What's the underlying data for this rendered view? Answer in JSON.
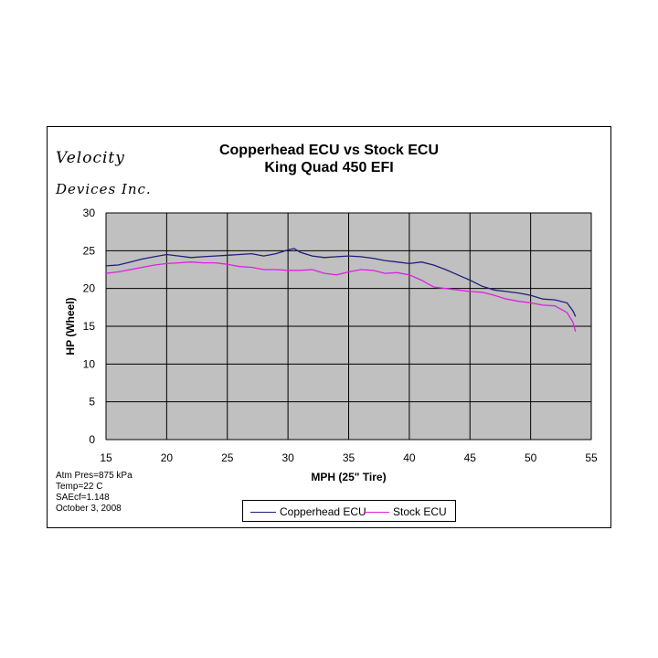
{
  "logo": {
    "line1": "Velocity",
    "line2": "Devices Inc."
  },
  "notes": [
    "Atm Pres=875 kPa",
    "Temp=22 C",
    "SAEcf=1.148",
    "October 3, 2008"
  ],
  "colors": {
    "copperhead": "#1f1f7a",
    "stock": "#e020e0",
    "plot_bg": "#c0c0c0",
    "grid": "#000000"
  },
  "chart_data": {
    "type": "line",
    "title": "Copperhead ECU vs Stock ECU",
    "subtitle": "King Quad 450 EFI",
    "xlabel": "MPH (25\"  Tire)",
    "ylabel": "HP (Wheel)",
    "xlim": [
      15,
      55
    ],
    "ylim": [
      0,
      30
    ],
    "xticks": [
      15,
      20,
      25,
      30,
      35,
      40,
      45,
      50,
      55
    ],
    "yticks": [
      0,
      5,
      10,
      15,
      20,
      25,
      30
    ],
    "grid": true,
    "legend": "bottom-center",
    "series": [
      {
        "name": "Copperhead ECU",
        "color": "#1f1f7a",
        "points": [
          [
            15,
            23.0
          ],
          [
            16,
            23.1
          ],
          [
            17,
            23.5
          ],
          [
            18,
            23.9
          ],
          [
            19,
            24.2
          ],
          [
            20,
            24.5
          ],
          [
            21,
            24.3
          ],
          [
            22,
            24.1
          ],
          [
            23,
            24.2
          ],
          [
            24,
            24.3
          ],
          [
            25,
            24.4
          ],
          [
            26,
            24.5
          ],
          [
            27,
            24.6
          ],
          [
            28,
            24.3
          ],
          [
            29,
            24.6
          ],
          [
            30,
            25.1
          ],
          [
            30.5,
            25.3
          ],
          [
            31,
            24.8
          ],
          [
            32,
            24.3
          ],
          [
            33,
            24.1
          ],
          [
            34,
            24.2
          ],
          [
            35,
            24.3
          ],
          [
            36,
            24.2
          ],
          [
            37,
            24.0
          ],
          [
            38,
            23.7
          ],
          [
            39,
            23.5
          ],
          [
            40,
            23.3
          ],
          [
            41,
            23.5
          ],
          [
            42,
            23.1
          ],
          [
            43,
            22.5
          ],
          [
            44,
            21.8
          ],
          [
            45,
            21.1
          ],
          [
            46,
            20.3
          ],
          [
            47,
            19.8
          ],
          [
            48,
            19.6
          ],
          [
            49,
            19.4
          ],
          [
            50,
            19.1
          ],
          [
            51,
            18.6
          ],
          [
            52,
            18.5
          ],
          [
            53,
            18.1
          ],
          [
            53.5,
            17.0
          ],
          [
            53.7,
            16.3
          ]
        ]
      },
      {
        "name": "Stock ECU",
        "color": "#e020e0",
        "points": [
          [
            15,
            22.0
          ],
          [
            16,
            22.2
          ],
          [
            17,
            22.5
          ],
          [
            18,
            22.8
          ],
          [
            19,
            23.1
          ],
          [
            20,
            23.3
          ],
          [
            21,
            23.4
          ],
          [
            22,
            23.5
          ],
          [
            23,
            23.4
          ],
          [
            24,
            23.4
          ],
          [
            25,
            23.2
          ],
          [
            26,
            22.9
          ],
          [
            27,
            22.8
          ],
          [
            28,
            22.5
          ],
          [
            29,
            22.5
          ],
          [
            30,
            22.4
          ],
          [
            31,
            22.4
          ],
          [
            32,
            22.5
          ],
          [
            33,
            22.0
          ],
          [
            34,
            21.8
          ],
          [
            35,
            22.2
          ],
          [
            36,
            22.5
          ],
          [
            37,
            22.4
          ],
          [
            38,
            22.0
          ],
          [
            39,
            22.1
          ],
          [
            40,
            21.8
          ],
          [
            41,
            21.1
          ],
          [
            42,
            20.2
          ],
          [
            43,
            20.0
          ],
          [
            44,
            19.8
          ],
          [
            45,
            19.6
          ],
          [
            46,
            19.5
          ],
          [
            47,
            19.1
          ],
          [
            48,
            18.6
          ],
          [
            49,
            18.3
          ],
          [
            50,
            18.1
          ],
          [
            51,
            17.8
          ],
          [
            52,
            17.7
          ],
          [
            53,
            16.8
          ],
          [
            53.5,
            15.5
          ],
          [
            53.7,
            14.3
          ]
        ]
      }
    ]
  }
}
